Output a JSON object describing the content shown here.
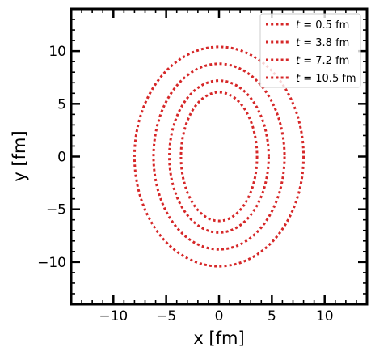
{
  "chart_data": {
    "type": "line",
    "xlabel": "x [fm]",
    "ylabel": "y [fm]",
    "xlim": [
      -14,
      14
    ],
    "ylim": [
      -14,
      14
    ],
    "x_ticks": [
      -10,
      -5,
      0,
      5,
      10
    ],
    "y_ticks": [
      -10,
      -5,
      0,
      5,
      10
    ],
    "x_tick_labels": [
      "−10",
      "−5",
      "0",
      "5",
      "10"
    ],
    "y_tick_labels": [
      "−10",
      "−5",
      "0",
      "5",
      "10"
    ],
    "grid": false,
    "legend_position": "top-right",
    "line_style": "dotted",
    "series_color": "#d62728",
    "series": [
      {
        "name": "t = 0.5 fm",
        "label_t": "t",
        "label_rest": " = 0.5 fm",
        "shape": "ellipse",
        "center": [
          0,
          0
        ],
        "semi_axis_x": 3.6,
        "semi_axis_y": 6.1
      },
      {
        "name": "t = 3.8 fm",
        "label_t": "t",
        "label_rest": " = 3.8 fm",
        "shape": "ellipse",
        "center": [
          0,
          0
        ],
        "semi_axis_x": 4.7,
        "semi_axis_y": 7.2
      },
      {
        "name": "t = 7.2 fm",
        "label_t": "t",
        "label_rest": " = 7.2 fm",
        "shape": "ellipse",
        "center": [
          0,
          0
        ],
        "semi_axis_x": 6.2,
        "semi_axis_y": 8.8
      },
      {
        "name": "t = 10.5 fm",
        "label_t": "t",
        "label_rest": " = 10.5 fm",
        "shape": "ellipse",
        "center": [
          0,
          0
        ],
        "semi_axis_x": 8.0,
        "semi_axis_y": 10.4
      }
    ]
  }
}
